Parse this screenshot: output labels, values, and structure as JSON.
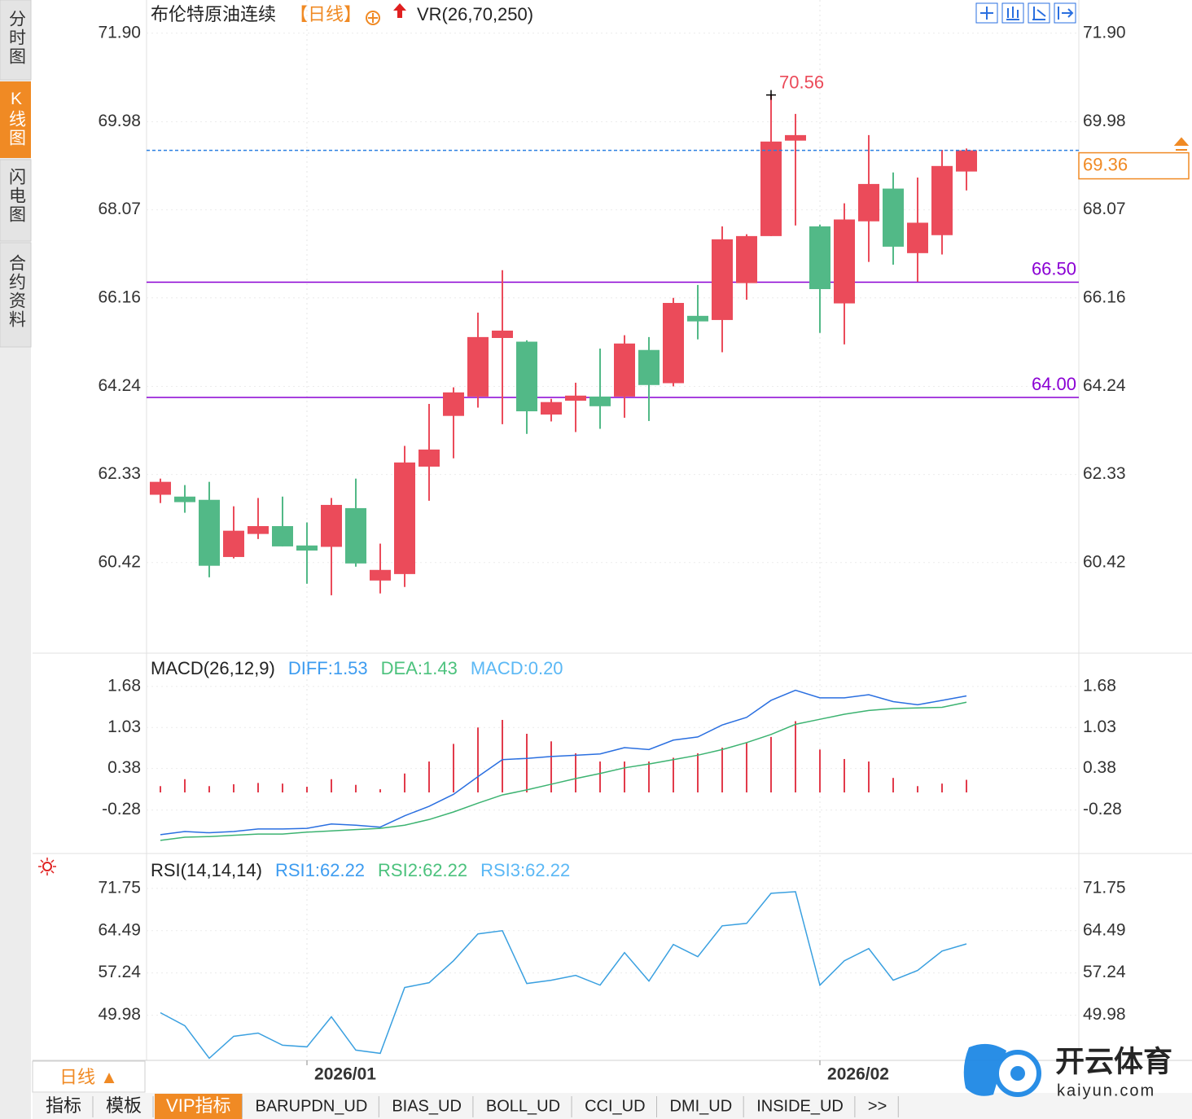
{
  "sidebar": [
    "分时图",
    "K线图",
    "闪电图",
    "合约资料"
  ],
  "period_button": "日线 ▲",
  "tabs": [
    "指标",
    "模板",
    "VIP指标",
    "BARUPDN_UD",
    "BIAS_UD",
    "BOLL_UD",
    "CCI_UD",
    "DMI_UD",
    "INSIDE_UD",
    ">>"
  ],
  "watermark": {
    "name": "开云体育",
    "site": "kaiyun.com"
  },
  "chart_data": [
    {
      "type": "candlestick",
      "title": "布伦特原油连续",
      "period": "【日线】",
      "indicator": "VR(26,70,250)",
      "categories": [
        null,
        null,
        null,
        null,
        null,
        null,
        "2026/01",
        null,
        null,
        null,
        null,
        null,
        null,
        null,
        null,
        null,
        null,
        null,
        null,
        null,
        null,
        null,
        null,
        null,
        null,
        null,
        null,
        "2026/02",
        null,
        null,
        null,
        null,
        null,
        null
      ],
      "open": [
        61.89,
        61.85,
        61.78,
        60.54,
        61.04,
        61.21,
        60.79,
        60.76,
        61.6,
        60.03,
        60.17,
        62.5,
        63.6,
        64.02,
        65.29,
        65.21,
        63.63,
        63.93,
        64.02,
        64.02,
        65.03,
        64.31,
        65.77,
        65.68,
        66.48,
        67.5,
        69.57,
        67.71,
        66.04,
        67.82,
        68.53,
        67.13,
        67.52,
        68.9
      ],
      "high": [
        62.24,
        62.1,
        62.17,
        61.64,
        61.82,
        61.85,
        61.29,
        61.82,
        62.24,
        60.83,
        62.95,
        63.86,
        64.22,
        65.84,
        66.76,
        65.24,
        63.97,
        64.32,
        65.06,
        65.35,
        65.31,
        66.16,
        66.44,
        67.71,
        67.54,
        70.56,
        70.15,
        67.75,
        68.21,
        69.69,
        68.88,
        68.77,
        69.37,
        69.4
      ],
      "low": [
        61.71,
        61.5,
        60.1,
        60.51,
        60.93,
        60.77,
        59.96,
        59.71,
        60.33,
        59.75,
        59.89,
        61.76,
        62.68,
        63.78,
        63.42,
        63.21,
        63.48,
        63.25,
        63.32,
        63.56,
        63.49,
        64.24,
        65.26,
        64.98,
        66.12,
        67.5,
        67.73,
        65.4,
        65.15,
        66.94,
        66.88,
        66.51,
        67.1,
        68.49
      ],
      "close": [
        62.17,
        61.73,
        60.35,
        61.11,
        61.21,
        60.77,
        60.68,
        61.67,
        60.4,
        60.26,
        62.59,
        62.87,
        64.11,
        65.31,
        65.45,
        63.7,
        63.9,
        64.04,
        63.81,
        65.17,
        64.27,
        66.05,
        65.65,
        67.43,
        67.5,
        69.55,
        69.69,
        66.35,
        67.86,
        68.63,
        67.27,
        67.79,
        69.02,
        69.36
      ],
      "up_color": "#eb4b5a",
      "down_color": "#52b987",
      "ylim": [
        58.49,
        72.62
      ],
      "yticks": [
        {
          "value": 71.9,
          "label": "71.90"
        },
        69.98,
        68.07,
        66.16,
        64.24,
        62.33,
        60.42
      ],
      "hlines": [
        {
          "value": 66.5,
          "label": "66.50"
        },
        {
          "value": 64,
          "label": "64.00"
        }
      ],
      "hline_color": "#8a00d4",
      "grid": true
    },
    {
      "type": "macd",
      "title": "MACD(26,12,9)",
      "series": [
        {
          "name": "DIFF",
          "legend_label": "DIFF:1.53",
          "legend_color": "#3d9cf0",
          "color": "#2a6fe0",
          "kind": "line",
          "values": [
            -0.67,
            -0.62,
            -0.64,
            -0.62,
            -0.58,
            -0.58,
            -0.57,
            -0.5,
            -0.52,
            -0.55,
            -0.37,
            -0.22,
            -0.03,
            0.25,
            0.52,
            0.54,
            0.57,
            0.59,
            0.61,
            0.71,
            0.68,
            0.83,
            0.88,
            1.07,
            1.19,
            1.46,
            1.62,
            1.5,
            1.5,
            1.55,
            1.44,
            1.39,
            1.46,
            1.53
          ]
        },
        {
          "name": "DEA",
          "legend_label": "DEA:1.43",
          "legend_color": "#4cc27d",
          "color": "#3cb371",
          "kind": "line",
          "values": [
            -0.76,
            -0.71,
            -0.7,
            -0.68,
            -0.66,
            -0.66,
            -0.63,
            -0.61,
            -0.59,
            -0.57,
            -0.52,
            -0.43,
            -0.31,
            -0.17,
            -0.04,
            0.04,
            0.13,
            0.22,
            0.3,
            0.39,
            0.45,
            0.52,
            0.59,
            0.68,
            0.79,
            0.92,
            1.08,
            1.16,
            1.24,
            1.3,
            1.33,
            1.34,
            1.35,
            1.43
          ]
        },
        {
          "name": "MACD",
          "legend_label": "MACD:0.20",
          "legend_color": "#5bb8f5",
          "color": "#e23b4b",
          "kind": "bar",
          "values": [
            0.1,
            0.21,
            0.1,
            0.13,
            0.15,
            0.14,
            0.09,
            0.21,
            0.12,
            0.05,
            0.3,
            0.49,
            0.77,
            1.03,
            1.15,
            0.93,
            0.81,
            0.62,
            0.49,
            0.49,
            0.49,
            0.55,
            0.62,
            0.71,
            0.79,
            0.88,
            1.13,
            0.68,
            0.53,
            0.49,
            0.23,
            0.1,
            0.14,
            0.2
          ]
        }
      ],
      "ylim": [
        -0.93,
        2.17
      ],
      "yticks": [
        1.68,
        1.03,
        0.38,
        -0.28
      ]
    },
    {
      "type": "line",
      "title": "RSI(14,14,14)",
      "legend": [
        {
          "label": "RSI1:62.22",
          "color": "#3d9cf0"
        },
        {
          "label": "RSI2:62.22",
          "color": "#4cc27d"
        },
        {
          "label": "RSI3:62.22",
          "color": "#5bb8f5"
        }
      ],
      "series": [
        {
          "name": "RSI1",
          "color": "#3aa0e0",
          "values": [
            50.4,
            48.17,
            42.58,
            46.35,
            46.91,
            44.82,
            44.54,
            49.7,
            43.98,
            43.42,
            54.73,
            55.56,
            59.33,
            63.94,
            64.49,
            55.42,
            55.98,
            56.82,
            55.14,
            60.73,
            55.84,
            62.12,
            60.03,
            65.33,
            65.75,
            70.91,
            71.19,
            55.14,
            59.33,
            61.42,
            55.98,
            57.66,
            61.0,
            62.22
          ]
        }
      ],
      "ylim": [
        42.5,
        77.47
      ],
      "yticks": [
        71.75,
        64.49,
        57.24,
        49.98
      ]
    }
  ]
}
